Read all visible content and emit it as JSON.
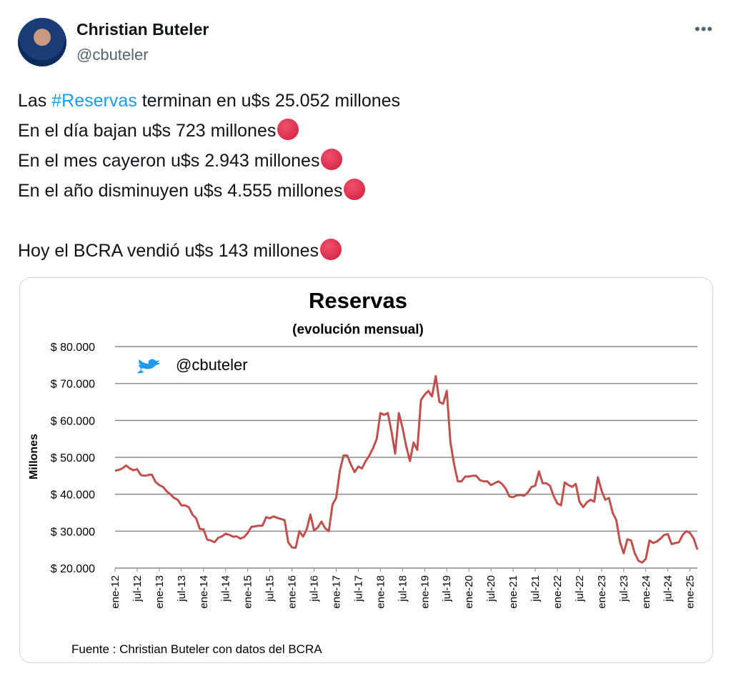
{
  "tweet": {
    "name": "Christian Buteler",
    "handle": "@cbuteler",
    "lines": [
      {
        "parts": [
          "Las ",
          "#Reservas",
          " terminan en u$s 25.052 millones"
        ]
      },
      {
        "parts": [
          "En el día bajan u$s 723 millones"
        ]
      },
      {
        "parts": [
          "En el mes cayeron u$s 2.943 millones"
        ]
      },
      {
        "parts": [
          "En el año disminuyen u$s 4.555 millones"
        ]
      },
      {
        "parts": [
          "Hoy el BCRA vendió u$s 143 millones"
        ]
      }
    ]
  },
  "chart_data": {
    "type": "line",
    "title": "Reservas",
    "subtitle": "(evolución mensual)",
    "ylabel": "Millones",
    "watermark": "@cbuteler",
    "source": "Fuente : Christian Buteler con datos del BCRA",
    "color": "#c0504d",
    "grid": true,
    "ylim": [
      20000,
      80000
    ],
    "yticks": [
      {
        "value": 20000,
        "label": "$ 20.000"
      },
      {
        "value": 30000,
        "label": "$ 30.000"
      },
      {
        "value": 40000,
        "label": "$ 40.000"
      },
      {
        "value": 50000,
        "label": "$ 50.000"
      },
      {
        "value": 60000,
        "label": "$ 60.000"
      },
      {
        "value": 70000,
        "label": "$ 70.000"
      },
      {
        "value": 80000,
        "label": "$ 80.000"
      }
    ],
    "categories": [
      "ene-12",
      null,
      null,
      null,
      null,
      null,
      "jul-12",
      null,
      null,
      null,
      null,
      null,
      "ene-13",
      null,
      null,
      null,
      null,
      null,
      "jul-13",
      null,
      null,
      null,
      null,
      null,
      "ene-14",
      null,
      null,
      null,
      null,
      null,
      "jul-14",
      null,
      null,
      null,
      null,
      null,
      "ene-15",
      null,
      null,
      null,
      null,
      null,
      "jul-15",
      null,
      null,
      null,
      null,
      null,
      "ene-16",
      null,
      null,
      null,
      null,
      null,
      "jul-16",
      null,
      null,
      null,
      null,
      null,
      "ene-17",
      null,
      null,
      null,
      null,
      null,
      "jul-17",
      null,
      null,
      null,
      null,
      null,
      "ene-18",
      null,
      null,
      null,
      null,
      null,
      "jul-18",
      null,
      null,
      null,
      null,
      null,
      "ene-19",
      null,
      null,
      null,
      null,
      null,
      "jul-19",
      null,
      null,
      null,
      null,
      null,
      "ene-20",
      null,
      null,
      null,
      null,
      null,
      "jul-20",
      null,
      null,
      null,
      null,
      null,
      "ene-21",
      null,
      null,
      null,
      null,
      null,
      "jul-21",
      null,
      null,
      null,
      null,
      null,
      "ene-22",
      null,
      null,
      null,
      null,
      null,
      "jul-22",
      null,
      null,
      null,
      null,
      null,
      "ene-23",
      null,
      null,
      null,
      null,
      null,
      "jul-23",
      null,
      null,
      null,
      null,
      null,
      "ene-24",
      null,
      null,
      null,
      null,
      null,
      "jul-24",
      null,
      null,
      null,
      null,
      null,
      "ene-25",
      null,
      null
    ],
    "values": [
      46400,
      46600,
      47000,
      47800,
      47000,
      46500,
      46800,
      45200,
      45000,
      45200,
      45300,
      43300,
      42500,
      42000,
      40800,
      40000,
      39000,
      38500,
      37000,
      37000,
      36500,
      34500,
      33500,
      30600,
      30500,
      27700,
      27500,
      27000,
      28200,
      28600,
      29300,
      29000,
      28500,
      28600,
      28000,
      28400,
      29500,
      31200,
      31300,
      31500,
      31500,
      33800,
      33500,
      34000,
      33600,
      33300,
      33000,
      27000,
      25600,
      25500,
      30000,
      28500,
      30500,
      34500,
      30200,
      31000,
      32600,
      30800,
      30000,
      37200,
      39000,
      46500,
      50500,
      50500,
      48000,
      46000,
      47500,
      47000,
      49000,
      50500,
      52500,
      55000,
      62000,
      61500,
      62000,
      57000,
      51000,
      62000,
      58000,
      53000,
      49000,
      54000,
      52000,
      65500,
      67000,
      68000,
      66500,
      72000,
      65000,
      64500,
      68000,
      54000,
      48000,
      43500,
      43500,
      44800,
      44800,
      45000,
      45000,
      43800,
      43500,
      43500,
      42500,
      43000,
      43500,
      42800,
      41500,
      39400,
      39200,
      39700,
      39800,
      39600,
      40500,
      42000,
      42300,
      46200,
      43000,
      43000,
      42300,
      39500,
      37500,
      37000,
      43200,
      42500,
      42000,
      42800,
      38000,
      36500,
      37800,
      38500,
      38000,
      44600,
      41000,
      38500,
      39000,
      35000,
      33000,
      27000,
      24000,
      27800,
      27500,
      24000,
      22000,
      21500,
      22500,
      27500,
      26800,
      27200,
      28000,
      29000,
      29200,
      26500,
      26800,
      27000,
      29000,
      30000,
      29500,
      28000,
      25000
    ]
  }
}
